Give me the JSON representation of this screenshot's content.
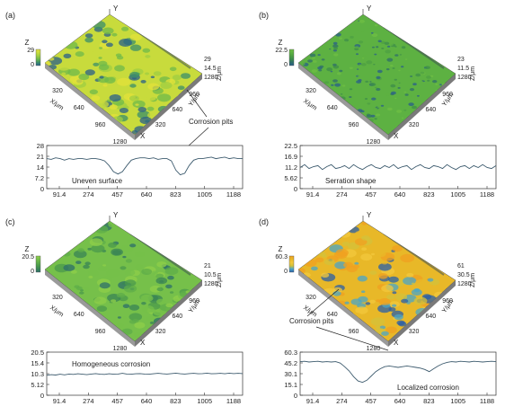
{
  "panels": [
    {
      "letter": "(a)",
      "surface": {
        "z_top": "29",
        "z_mid": "14.5",
        "z_zero": "0",
        "z_legend_top": "29",
        "z_legend_zero": "0",
        "y_max": "1280",
        "y_ticks": [
          "960",
          "640",
          "320"
        ],
        "x_ticks": [
          "320",
          "640",
          "960",
          "1280"
        ],
        "axis_z": "Z",
        "axis_y": "Y",
        "axis_x": "X",
        "xlabel": "X/μm",
        "ylabel": "Y/μm",
        "zlabel": "Z/μm",
        "annotation": "Corrosion pits",
        "palette": [
          "#e3e23a",
          "#c8db3c",
          "#9fce42",
          "#6fb94a",
          "#3b8f6a",
          "#2a5f8a"
        ]
      },
      "profile": {
        "y_ticks": [
          "28",
          "21",
          "14",
          "7.2",
          "0"
        ],
        "x_ticks": [
          "91.4",
          "274",
          "457",
          "640",
          "823",
          "1005",
          "1188"
        ],
        "label": "Uneven surface",
        "ylim": [
          0,
          28
        ],
        "values": [
          19.5,
          19,
          20,
          19.5,
          18.5,
          19.5,
          19,
          19.5,
          19.5,
          19,
          19.5,
          19.5,
          19,
          18,
          15,
          11,
          9.5,
          11,
          15,
          18.5,
          19.5,
          20,
          20,
          19.5,
          20,
          19,
          19.5,
          19.5,
          18,
          12,
          9,
          10,
          15,
          18.5,
          19.5,
          19.5,
          20,
          20.5,
          19.5,
          20,
          20.5,
          19.5,
          20,
          19.5,
          19.5
        ]
      }
    },
    {
      "letter": "(b)",
      "surface": {
        "z_top": "23",
        "z_mid": "11.5",
        "z_zero": "0",
        "z_legend_top": "22.5",
        "z_legend_zero": "0",
        "y_max": "1280",
        "y_ticks": [
          "960",
          "640",
          "320"
        ],
        "x_ticks": [
          "320",
          "640",
          "960",
          "1280"
        ],
        "axis_z": "Z",
        "axis_y": "Y",
        "axis_x": "X",
        "xlabel": "X/μm",
        "ylabel": "Y/μm",
        "zlabel": "Z/μm",
        "palette": [
          "#6fbf44",
          "#5db142",
          "#4ea043",
          "#3d8d4a",
          "#2f6f6a",
          "#2a5f8a"
        ]
      },
      "profile": {
        "y_ticks": [
          "22.5",
          "16.9",
          "11.2",
          "5.62",
          "0"
        ],
        "x_ticks": [
          "91.4",
          "274",
          "457",
          "640",
          "823",
          "1005",
          "1188"
        ],
        "label": "Serration shape",
        "ylim": [
          0,
          22.5
        ],
        "values": [
          11,
          12.5,
          10.5,
          11.5,
          12,
          10,
          11.5,
          12.5,
          10.5,
          11,
          12,
          10.5,
          12.5,
          11,
          10,
          11.5,
          12.5,
          11,
          10.5,
          12,
          11,
          12.5,
          10.5,
          11.5,
          12,
          10,
          11.5,
          12.5,
          11,
          10.5,
          12,
          11.5,
          10.5,
          12.5,
          11,
          10,
          11.5,
          12,
          10.5,
          12,
          11,
          12.5,
          11,
          10.5,
          12
        ]
      }
    },
    {
      "letter": "(c)",
      "surface": {
        "z_top": "21",
        "z_mid": "10.5",
        "z_zero": "0",
        "z_legend_top": "20.5",
        "z_legend_zero": "0",
        "y_max": "1280",
        "y_ticks": [
          "960",
          "640",
          "320"
        ],
        "x_ticks": [
          "320",
          "640",
          "960",
          "1280"
        ],
        "axis_z": "Z",
        "axis_y": "Y",
        "axis_x": "X",
        "xlabel": "X/μm",
        "ylabel": "Y/μm",
        "zlabel": "Z/μm",
        "palette": [
          "#8fcf4a",
          "#76c04a",
          "#5fae4a",
          "#4b9a4c",
          "#3a8456",
          "#2e6f6a"
        ]
      },
      "profile": {
        "y_ticks": [
          "20.5",
          "15.4",
          "10.3",
          "5.12",
          "0"
        ],
        "x_ticks": [
          "91.4",
          "274",
          "457",
          "640",
          "823",
          "1005",
          "1188"
        ],
        "label": "Homogeneous corrosion",
        "ylim": [
          0,
          20.5
        ],
        "values": [
          9.5,
          9.8,
          9.6,
          10,
          9.7,
          10.1,
          9.9,
          10.2,
          10,
          9.8,
          10.1,
          10.3,
          10,
          9.9,
          10.2,
          10,
          10.1,
          10.4,
          10.1,
          10,
          10.2,
          10.3,
          10.1,
          10,
          10.2,
          10.4,
          10.2,
          10.1,
          10.3,
          10.5,
          10.2,
          10.1,
          10.3,
          10.4,
          10.2,
          10.3,
          10.5,
          10.2,
          10.3,
          10.4,
          10.2,
          10.5,
          10.3,
          10.4,
          10.3
        ]
      }
    },
    {
      "letter": "(d)",
      "surface": {
        "z_top": "61",
        "z_mid": "30.5",
        "z_zero": "0",
        "z_legend_top": "60.3",
        "z_legend_zero": "0",
        "y_max": "1280",
        "y_ticks": [
          "960",
          "640",
          "320"
        ],
        "x_ticks": [
          "320",
          "640",
          "960",
          "1280"
        ],
        "axis_z": "Z",
        "axis_y": "Y",
        "axis_x": "X",
        "xlabel": "X/μm",
        "ylabel": "Y/μm",
        "zlabel": "Z/μm",
        "annotation": "Corrosion pits",
        "palette": [
          "#f0a020",
          "#e8b828",
          "#f3c83c",
          "#d4c23a",
          "#4aa6c8",
          "#2a5fa8"
        ]
      },
      "profile": {
        "y_ticks": [
          "60.3",
          "45.2",
          "30.1",
          "15.1",
          "0"
        ],
        "x_ticks": [
          "91.4",
          "274",
          "457",
          "640",
          "823",
          "1005",
          "1188"
        ],
        "label": "Localized corrosion",
        "ylim": [
          0,
          60.3
        ],
        "values": [
          47,
          47.5,
          46.5,
          47,
          47.5,
          46.5,
          47,
          46.5,
          47,
          45,
          40,
          34,
          26,
          20,
          18,
          21,
          27,
          33,
          37,
          40,
          41,
          40,
          39,
          40,
          41,
          40,
          39,
          38,
          36,
          33,
          37,
          41,
          44,
          46,
          47,
          46.5,
          47.5,
          47,
          46.5,
          47.5,
          47,
          46.5,
          47,
          47.5,
          47
        ]
      }
    }
  ]
}
